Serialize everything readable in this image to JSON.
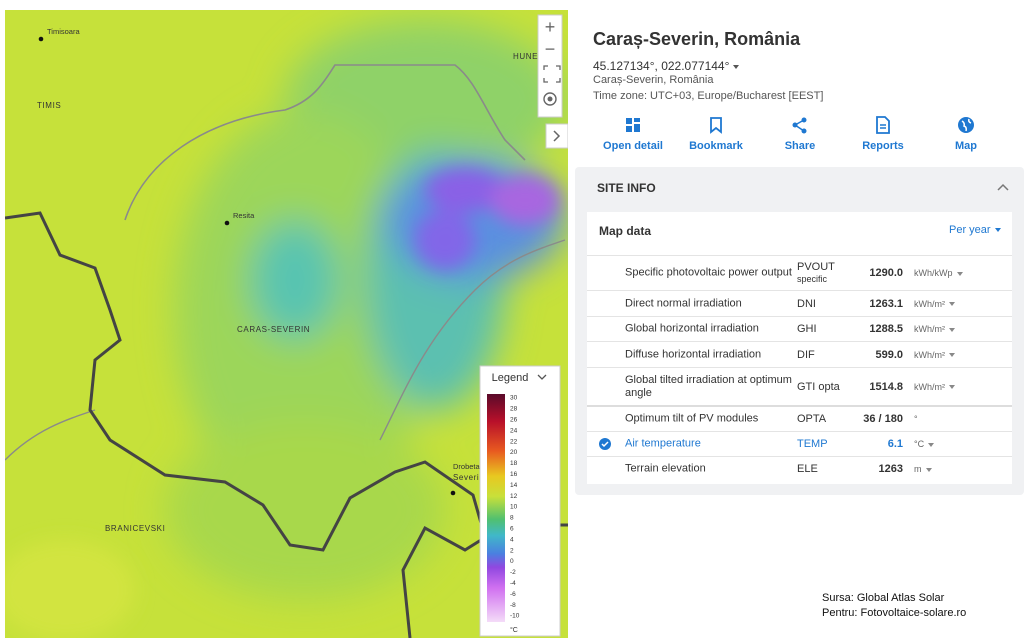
{
  "map": {
    "labels": [
      {
        "text": "Timisoara",
        "kind": "city"
      },
      {
        "text": "TIMIS",
        "kind": "region"
      },
      {
        "text": "HUNE",
        "kind": "region"
      },
      {
        "text": "Resita",
        "kind": "city"
      },
      {
        "text": "CARAS-SEVERIN",
        "kind": "region"
      },
      {
        "text": "BRANICEVSKI",
        "kind": "region"
      },
      {
        "text": "Drobeta-",
        "kind": "city"
      },
      {
        "text": "Severin",
        "kind": "region"
      }
    ],
    "zoom_in": "+",
    "zoom_out": "−",
    "legend": {
      "title": "Legend",
      "ticks": [
        30,
        28,
        26,
        24,
        22,
        20,
        18,
        16,
        14,
        12,
        10,
        8,
        6,
        4,
        2,
        0,
        -2,
        -4,
        -6,
        -8,
        -10
      ],
      "unit": "°C"
    }
  },
  "header": {
    "title": "Caraș-Severin, România",
    "coordinates": "45.127134°, 022.077144°",
    "region": "Caraș-Severin, România",
    "timezone": "Time zone: UTC+03, Europe/Bucharest [EEST]"
  },
  "actions": [
    "Open detail",
    "Bookmark",
    "Share",
    "Reports",
    "Map"
  ],
  "site_info": {
    "title": "SITE INFO",
    "section": "Map data",
    "period": "Per year",
    "rows": [
      {
        "label": "Specific photovoltaic power output",
        "code": "PVOUT",
        "sub": "specific",
        "value": "1290.0",
        "unit": "kWh/kWp"
      },
      {
        "label": "Direct normal irradiation",
        "code": "DNI",
        "value": "1263.1",
        "unit": "kWh/m²"
      },
      {
        "label": "Global horizontal irradiation",
        "code": "GHI",
        "value": "1288.5",
        "unit": "kWh/m²"
      },
      {
        "label": "Diffuse horizontal irradiation",
        "code": "DIF",
        "value": "599.0",
        "unit": "kWh/m²"
      },
      {
        "label": "Global tilted irradiation at optimum angle",
        "code": "GTI opta",
        "value": "1514.8",
        "unit": "kWh/m²"
      },
      {
        "label": "Optimum tilt of PV modules",
        "code": "OPTA",
        "value": "36 / 180",
        "unit": "°"
      },
      {
        "label": "Air temperature",
        "code": "TEMP",
        "value": "6.1",
        "unit": "°C",
        "selected": true
      },
      {
        "label": "Terrain elevation",
        "code": "ELE",
        "value": "1263",
        "unit": "m"
      }
    ]
  },
  "source": [
    "Sursa: Global Atlas Solar",
    "Pentru: Fotovoltaice-solare.ro"
  ]
}
